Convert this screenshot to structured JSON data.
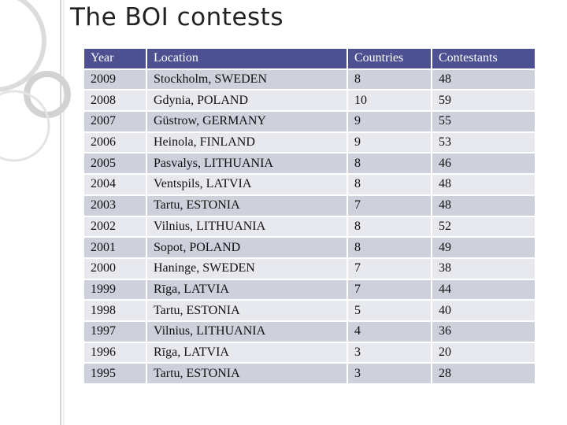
{
  "slide": {
    "title": "The BOI contests"
  },
  "table": {
    "columns": [
      "Year",
      "Location",
      "Countries",
      "Contestants"
    ],
    "rows": [
      [
        "2009",
        "Stockholm, SWEDEN",
        "8",
        "48"
      ],
      [
        "2008",
        "Gdynia, POLAND",
        "10",
        "59"
      ],
      [
        "2007",
        "Güstrow, GERMANY",
        "9",
        "55"
      ],
      [
        "2006",
        "Heinola, FINLAND",
        "9",
        "53"
      ],
      [
        "2005",
        "Pasvalys, LITHUANIA",
        "8",
        "46"
      ],
      [
        "2004",
        "Ventspils, LATVIA",
        "8",
        "48"
      ],
      [
        "2003",
        "Tartu, ESTONIA",
        "7",
        "48"
      ],
      [
        "2002",
        "Vilnius, LITHUANIA",
        "8",
        "52"
      ],
      [
        "2001",
        "Sopot, POLAND",
        "8",
        "49"
      ],
      [
        "2000",
        "Haninge, SWEDEN",
        "7",
        "38"
      ],
      [
        "1999",
        "Rīga, LATVIA",
        "7",
        "44"
      ],
      [
        "1998",
        "Tartu, ESTONIA",
        "5",
        "40"
      ],
      [
        "1997",
        "Vilnius, LITHUANIA",
        "4",
        "36"
      ],
      [
        "1996",
        "Rīga, LATVIA",
        "3",
        "20"
      ],
      [
        "1995",
        "Tartu, ESTONIA",
        "3",
        "28"
      ]
    ]
  },
  "colors": {
    "header_bg": "#4e5191",
    "row_odd": "#ced0dc",
    "row_even": "#e8e9ee",
    "decor": "#d4d4d4"
  }
}
